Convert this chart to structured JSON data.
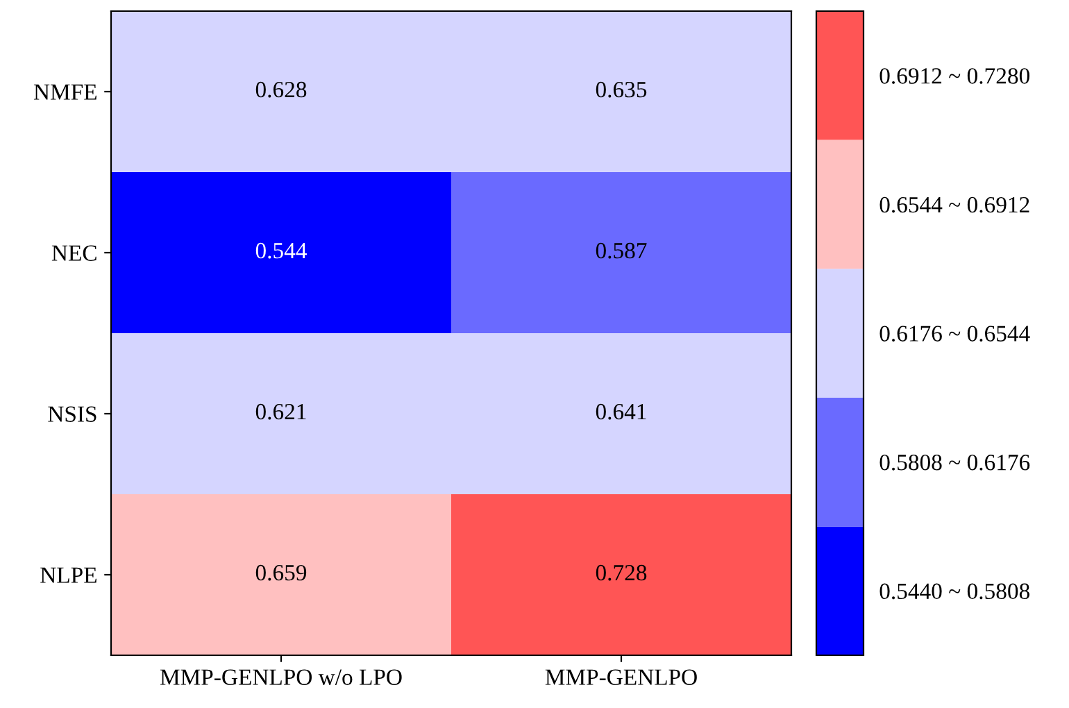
{
  "chart_data": {
    "type": "heatmap",
    "categories": [
      "MMP-GENLPO w/o LPO",
      "MMP-GENLPO"
    ],
    "y_categories": [
      "NMFE",
      "NEC",
      "NSIS",
      "NLPE"
    ],
    "cells": [
      [
        0.628,
        0.635
      ],
      [
        0.544,
        0.587
      ],
      [
        0.621,
        0.641
      ],
      [
        0.659,
        0.728
      ]
    ],
    "data_labels": true,
    "clim": [
      0.544,
      0.728
    ],
    "colors": [
      "#0000ff",
      "#6a6aff",
      "#d5d5ff",
      "#ffc0c0",
      "#ff5555"
    ],
    "cticks": [
      {
        "value": 0.5624,
        "label": "0.5440 ~ 0.5808"
      },
      {
        "value": 0.5992,
        "label": "0.5808 ~ 0.6176"
      },
      {
        "value": 0.636,
        "label": "0.6176 ~ 0.6544"
      },
      {
        "value": 0.6728,
        "label": "0.6544 ~ 0.6912"
      },
      {
        "value": 0.7096,
        "label": "0.6912 ~ 0.7280"
      }
    ]
  }
}
